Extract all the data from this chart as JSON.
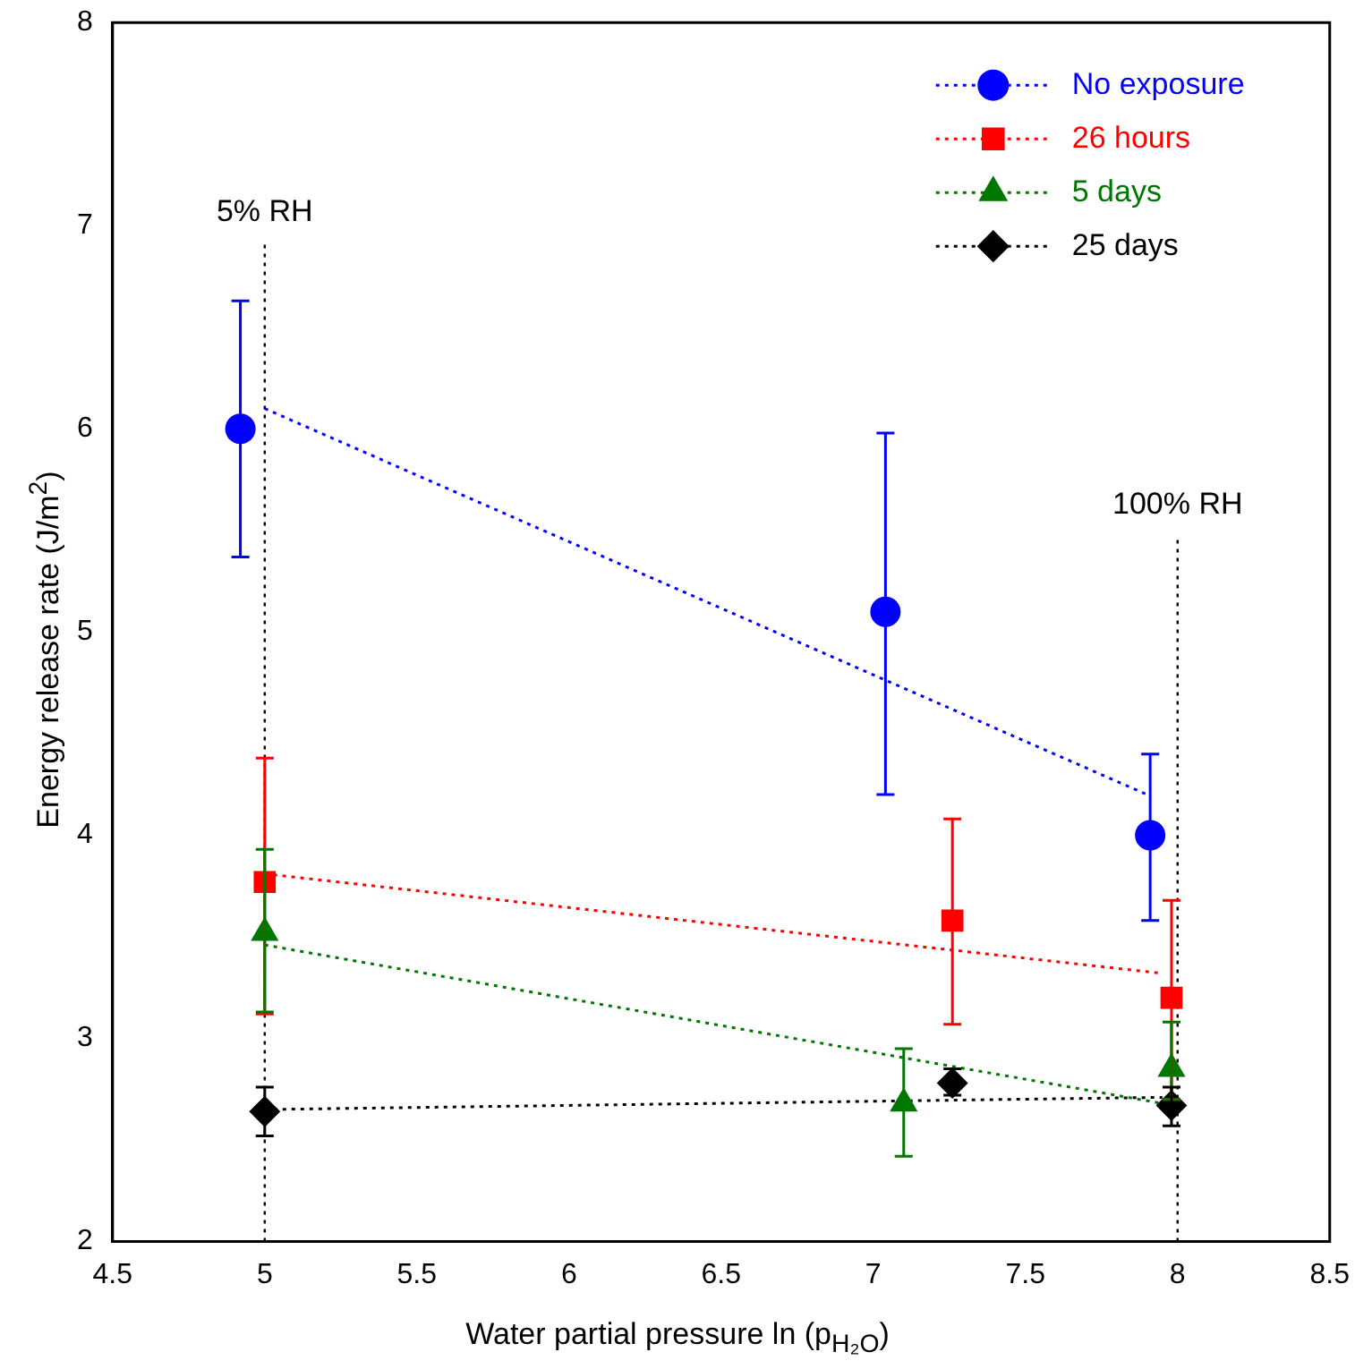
{
  "chart_data": {
    "type": "scatter",
    "xlabel": "Water partial pressure ln (p$_{H₂O}$)",
    "ylabel": "Energy release rate (J/m$^{2}$)",
    "xlim": [
      4.5,
      8.5
    ],
    "xticks": [
      4.5,
      5,
      5.5,
      6,
      6.5,
      7,
      7.5,
      8,
      8.5
    ],
    "ylim": [
      2,
      8
    ],
    "yticks": [
      2,
      3,
      4,
      5,
      6,
      7,
      8
    ],
    "grid": false,
    "legend": "top right",
    "series": [
      {
        "name": "No exposure",
        "color": "#0000ff",
        "marker": "circle",
        "x": [
          4.92,
          7.04,
          7.91
        ],
        "values": [
          6.0,
          5.1,
          4.0
        ],
        "errors": [
          [
            5.37,
            6.63
          ],
          [
            4.2,
            5.98
          ],
          [
            3.58,
            4.4
          ]
        ]
      },
      {
        "name": "26 hours",
        "color": "#ff0000",
        "marker": "square",
        "x": [
          5.0,
          7.26,
          7.98
        ],
        "values": [
          3.77,
          3.58,
          3.2
        ],
        "errors": [
          [
            3.12,
            4.38
          ],
          [
            3.07,
            4.08
          ],
          [
            2.7,
            3.68
          ]
        ]
      },
      {
        "name": "5 days",
        "color": "#007700",
        "marker": "triangle",
        "x": [
          5.0,
          7.1,
          7.98
        ],
        "values": [
          3.52,
          2.68,
          2.85
        ],
        "errors": [
          [
            3.13,
            3.93
          ],
          [
            2.42,
            2.95
          ],
          [
            2.7,
            3.08
          ]
        ]
      },
      {
        "name": "25 days",
        "color": "#000000",
        "marker": "diamond",
        "x": [
          5.0,
          7.26,
          7.98
        ],
        "values": [
          2.64,
          2.78,
          2.67
        ],
        "errors": [
          [
            2.52,
            2.76
          ],
          [
            2.72,
            2.85
          ],
          [
            2.57,
            2.76
          ]
        ]
      },
      {
        "type": "line",
        "color": "#0000ff",
        "line_style": "dotted",
        "x": [
          5.0,
          7.9
        ],
        "values": [
          6.1,
          4.2
        ]
      },
      {
        "type": "line",
        "color": "#ff0000",
        "line_style": "dotted",
        "x": [
          5.0,
          7.95
        ],
        "values": [
          3.81,
          3.32
        ]
      },
      {
        "type": "line",
        "color": "#007700",
        "line_style": "dotted",
        "x": [
          5.0,
          7.95
        ],
        "values": [
          3.46,
          2.68
        ]
      },
      {
        "type": "line",
        "color": "#000000",
        "line_style": "dotted",
        "x": [
          5.0,
          7.95
        ],
        "values": [
          2.65,
          2.71
        ]
      }
    ],
    "ref_lines": [
      {
        "axis": "x",
        "value": 5,
        "label": "5% RH",
        "color": "#000000",
        "line_style": "dotted"
      },
      {
        "axis": "x",
        "value": 8,
        "label": "100% RH",
        "color": "#000000",
        "line_style": "dotted"
      }
    ]
  }
}
